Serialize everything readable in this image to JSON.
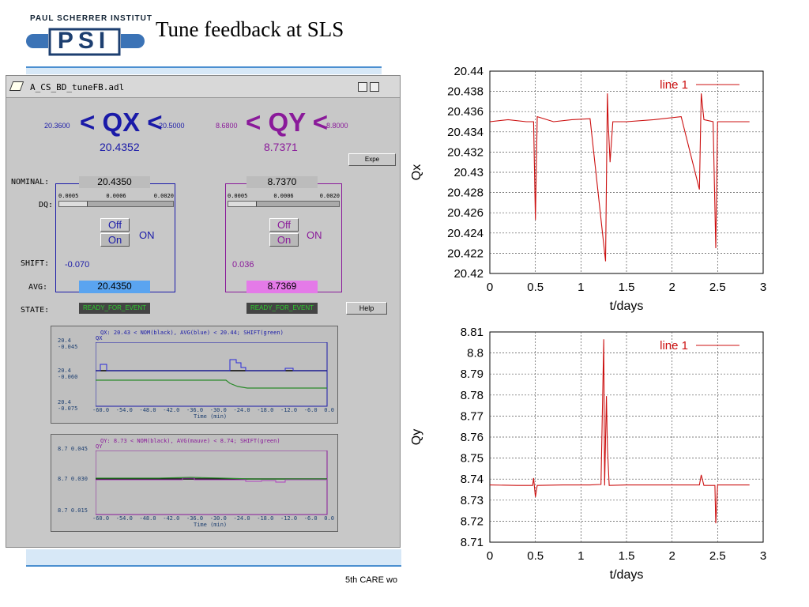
{
  "logo": {
    "text": "PAUL SCHERRER INSTITUT",
    "mark": "PSI"
  },
  "slide": {
    "title": "Tune feedback at SLS",
    "footer": "5th CARE wo"
  },
  "window": {
    "title": "A_CS_BD_tuneFB.adl"
  },
  "qx": {
    "low": "20.3600",
    "label": "< QX <",
    "high": "20.5000",
    "value": "20.4352",
    "nominal": "20.4350",
    "dq_ticks": [
      "0.0005",
      "0.0006",
      "0.0020"
    ],
    "shift": "-0.070",
    "avg": "20.4350",
    "state": "READY_FOR_EVENT"
  },
  "qy": {
    "low": "8.6800",
    "label": "< QY <",
    "high": "8.8000",
    "value": "8.7371",
    "nominal": "8.7370",
    "dq_ticks": [
      "0.0005",
      "0.0006",
      "0.0020"
    ],
    "shift": "0.036",
    "avg": "8.7369",
    "state": "READY_FOR_EVENT"
  },
  "labels": {
    "nominal": "NOMINAL:",
    "dq": "DQ:",
    "shift": "SHIFT:",
    "avg": "AVG:",
    "state": "STATE:",
    "off": "Off",
    "on": "On",
    "on_status": "ON",
    "expand": "Expe",
    "help": "Help"
  },
  "strip_x": {
    "title": "QX: 20.43 < NOM(black), AVG(blue) < 20.44;  SHIFT(green)",
    "tag": "QX",
    "y_labels": [
      "20.4 -0.045",
      "20.4 -0.060",
      "20.4 -0.075"
    ],
    "ticks": [
      "-60.0",
      "-54.0",
      "-48.0",
      "-42.0",
      "-36.0",
      "-30.0",
      "-24.0",
      "-18.0",
      "-12.0",
      "-6.0",
      "0.0"
    ],
    "xlabel": "Time (min)"
  },
  "strip_y": {
    "title": "QY: 8.73 < NOM(black), AVG(mauve) < 8.74;  SHIFT(green)",
    "tag": "QY",
    "y_labels": [
      "8.7 0.045",
      "8.7 0.030",
      "8.7 0.015"
    ],
    "ticks": [
      "-60.0",
      "-54.0",
      "-48.0",
      "-42.0",
      "-36.0",
      "-30.0",
      "-24.0",
      "-18.0",
      "-12.0",
      "-6.0",
      "0.0"
    ],
    "xlabel": "Time (min)"
  },
  "chart_data": [
    {
      "type": "line",
      "ylabel": "Qx",
      "xlabel": "t/days",
      "xlim": [
        0,
        3
      ],
      "ylim": [
        20.42,
        20.44
      ],
      "xticks": [
        "0",
        "0.5",
        "1",
        "1.5",
        "2",
        "2.5",
        "3"
      ],
      "yticks": [
        "20.44",
        "20.438",
        "20.436",
        "20.434",
        "20.432",
        "20.43",
        "20.428",
        "20.426",
        "20.424",
        "20.422",
        "20.42"
      ],
      "series": [
        {
          "name": "line 1",
          "x": [
            0,
            0.2,
            0.4,
            0.48,
            0.5,
            0.52,
            0.7,
            0.9,
            1.1,
            1.27,
            1.29,
            1.3,
            1.32,
            1.35,
            1.5,
            1.8,
            2.1,
            2.3,
            2.32,
            2.35,
            2.45,
            2.48,
            2.5,
            2.55,
            2.85
          ],
          "y": [
            20.435,
            20.4352,
            20.435,
            20.435,
            20.4253,
            20.4355,
            20.435,
            20.4352,
            20.4353,
            20.4212,
            20.4378,
            20.4348,
            20.431,
            20.435,
            20.435,
            20.4352,
            20.4355,
            20.4283,
            20.4378,
            20.4352,
            20.435,
            20.4225,
            20.435,
            20.435,
            20.435
          ]
        }
      ],
      "legend": "top-right",
      "grid": true
    },
    {
      "type": "line",
      "ylabel": "Qy",
      "xlabel": "t/days",
      "xlim": [
        0,
        3
      ],
      "ylim": [
        8.71,
        8.81
      ],
      "xticks": [
        "0",
        "0.5",
        "1",
        "1.5",
        "2",
        "2.5",
        "3"
      ],
      "yticks": [
        "8.81",
        "8.8",
        "8.79",
        "8.78",
        "8.77",
        "8.76",
        "8.75",
        "8.74",
        "8.73",
        "8.72",
        "8.71"
      ],
      "series": [
        {
          "name": "line 1",
          "x": [
            0,
            0.3,
            0.47,
            0.48,
            0.5,
            0.52,
            0.8,
            1.1,
            1.22,
            1.25,
            1.26,
            1.28,
            1.29,
            1.31,
            1.5,
            2.0,
            2.3,
            2.32,
            2.35,
            2.47,
            2.48,
            2.5,
            2.6,
            2.85
          ],
          "y": [
            8.7372,
            8.737,
            8.737,
            8.7405,
            8.7315,
            8.737,
            8.7372,
            8.7372,
            8.7375,
            8.8065,
            8.737,
            8.7795,
            8.7555,
            8.737,
            8.7372,
            8.7372,
            8.7372,
            8.742,
            8.737,
            8.737,
            8.719,
            8.7372,
            8.7372,
            8.7372
          ]
        }
      ],
      "legend": "top-right",
      "grid": true
    }
  ]
}
